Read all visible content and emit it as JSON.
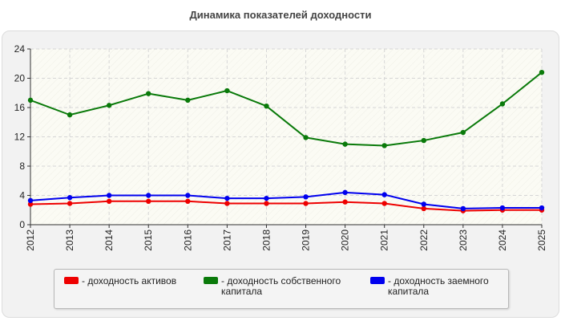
{
  "chart_data": {
    "type": "line",
    "title": "Динамика показателей доходности",
    "categories": [
      "2012",
      "2013",
      "2014",
      "2015",
      "2016",
      "2017",
      "2018",
      "2019",
      "2020",
      "2021",
      "2022",
      "2023",
      "2024",
      "2025"
    ],
    "ylim": [
      0,
      24
    ],
    "yticks": [
      "0",
      "4",
      "8",
      "12",
      "16",
      "20",
      "24"
    ],
    "grid": true,
    "legend_position": "bottom",
    "series": [
      {
        "name": "- доходность активов",
        "color": "#ee0000",
        "values": [
          2.8,
          2.9,
          3.2,
          3.2,
          3.2,
          2.9,
          2.9,
          2.9,
          3.1,
          2.9,
          2.2,
          1.9,
          2.0,
          2.0
        ]
      },
      {
        "name": "- доходность собственного капитала",
        "color": "#0a7a0a",
        "values": [
          17.0,
          15.0,
          16.3,
          17.9,
          17.0,
          18.3,
          16.2,
          11.9,
          11.0,
          10.8,
          11.5,
          12.6,
          16.5,
          20.8
        ]
      },
      {
        "name": "- доходность заемного капитала",
        "color": "#0000ee",
        "values": [
          3.3,
          3.7,
          4.0,
          4.0,
          4.0,
          3.6,
          3.6,
          3.8,
          4.4,
          4.1,
          2.8,
          2.2,
          2.3,
          2.3
        ]
      }
    ]
  }
}
